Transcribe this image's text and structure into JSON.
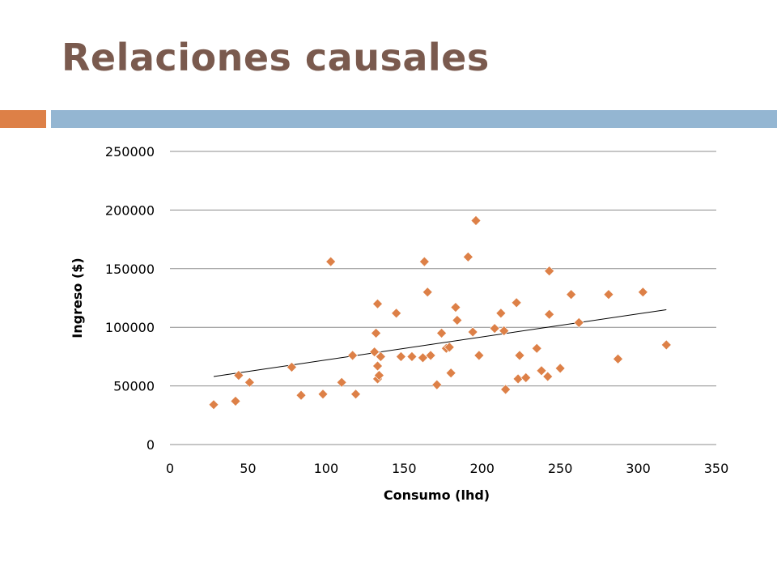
{
  "slide": {
    "title": "Relaciones causales",
    "accent_color": "#dd8047",
    "bar_color": "#94b6d2",
    "title_color": "#7a5a4e"
  },
  "chart_data": {
    "type": "scatter",
    "xlabel": "Consumo (lhd)",
    "ylabel": "Ingreso ($)",
    "xlim": [
      0,
      350
    ],
    "ylim": [
      0,
      250000
    ],
    "x_ticks": [
      0,
      50,
      100,
      150,
      200,
      250,
      300,
      350
    ],
    "y_ticks": [
      0,
      50000,
      100000,
      150000,
      200000,
      250000
    ],
    "x_tick_labels": [
      "0",
      "50",
      "100",
      "150",
      "200",
      "250",
      "300",
      "350"
    ],
    "y_tick_labels": [
      "0",
      "50000",
      "100000",
      "150000",
      "200000",
      "250000"
    ],
    "grid": "horizontal",
    "legend": "none",
    "marker": "diamond",
    "marker_color": "#dd8047",
    "trendline": {
      "type": "linear",
      "x": [
        28,
        318
      ],
      "y": [
        58000,
        115000
      ]
    },
    "points": [
      [
        28,
        34000
      ],
      [
        42,
        37000
      ],
      [
        44,
        59000
      ],
      [
        51,
        53000
      ],
      [
        78,
        66000
      ],
      [
        84,
        42000
      ],
      [
        98,
        43000
      ],
      [
        103,
        156000
      ],
      [
        110,
        53000
      ],
      [
        117,
        76000
      ],
      [
        119,
        43000
      ],
      [
        131,
        79000
      ],
      [
        132,
        95000
      ],
      [
        133,
        120000
      ],
      [
        133,
        67000
      ],
      [
        133,
        56000
      ],
      [
        134,
        59000
      ],
      [
        135,
        75000
      ],
      [
        145,
        112000
      ],
      [
        148,
        75000
      ],
      [
        155,
        75000
      ],
      [
        162,
        74000
      ],
      [
        163,
        156000
      ],
      [
        165,
        130000
      ],
      [
        167,
        76000
      ],
      [
        171,
        51000
      ],
      [
        174,
        95000
      ],
      [
        177,
        82000
      ],
      [
        179,
        83000
      ],
      [
        180,
        61000
      ],
      [
        183,
        117000
      ],
      [
        184,
        106000
      ],
      [
        191,
        160000
      ],
      [
        194,
        96000
      ],
      [
        196,
        191000
      ],
      [
        198,
        76000
      ],
      [
        208,
        99000
      ],
      [
        212,
        112000
      ],
      [
        214,
        97000
      ],
      [
        215,
        47000
      ],
      [
        222,
        121000
      ],
      [
        223,
        56000
      ],
      [
        224,
        76000
      ],
      [
        228,
        57000
      ],
      [
        235,
        82000
      ],
      [
        238,
        63000
      ],
      [
        242,
        58000
      ],
      [
        243,
        148000
      ],
      [
        243,
        111000
      ],
      [
        250,
        65000
      ],
      [
        257,
        128000
      ],
      [
        262,
        104000
      ],
      [
        281,
        128000
      ],
      [
        287,
        73000
      ],
      [
        303,
        130000
      ],
      [
        318,
        85000
      ]
    ]
  }
}
